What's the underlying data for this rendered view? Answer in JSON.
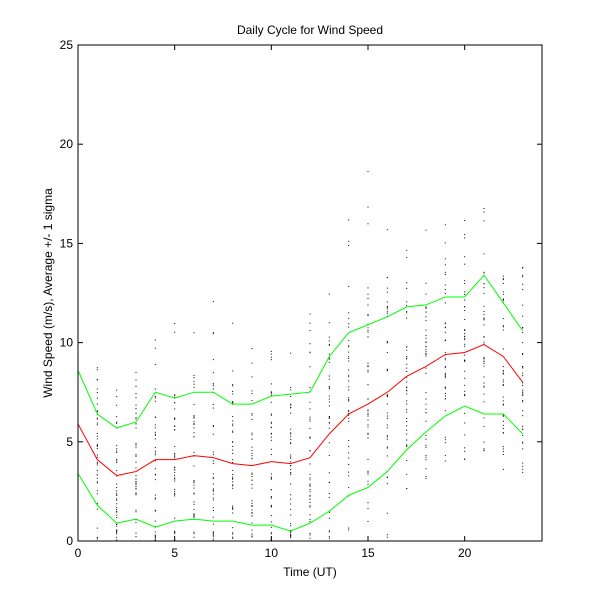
{
  "chart_data": {
    "type": "line",
    "title": "Daily Cycle for Wind Speed",
    "xlabel": "Time (UT)",
    "ylabel": "Wind Speed (m/s), Average +/- 1 sigma",
    "xlim": [
      0,
      24
    ],
    "ylim": [
      0,
      25
    ],
    "xticks": [
      0,
      5,
      10,
      15,
      20
    ],
    "yticks": [
      0,
      5,
      10,
      15,
      20,
      25
    ],
    "grid": false,
    "x": [
      0,
      1,
      2,
      3,
      4,
      5,
      6,
      7,
      8,
      9,
      10,
      11,
      12,
      13,
      14,
      15,
      16,
      17,
      18,
      19,
      20,
      21,
      22,
      23
    ],
    "series": [
      {
        "color": "#00ff00",
        "role": "upper",
        "values": [
          8.6,
          6.4,
          5.7,
          6.0,
          7.5,
          7.2,
          7.5,
          7.5,
          6.9,
          6.9,
          7.3,
          7.4,
          7.5,
          9.3,
          10.5,
          10.9,
          11.3,
          11.8,
          11.9,
          12.3,
          12.3,
          13.4,
          12.0,
          10.6
        ]
      },
      {
        "color": "#ff0000",
        "role": "average",
        "values": [
          5.9,
          4.1,
          3.3,
          3.5,
          4.1,
          4.1,
          4.3,
          4.2,
          3.9,
          3.8,
          4.0,
          3.9,
          4.2,
          5.4,
          6.4,
          6.9,
          7.5,
          8.3,
          8.8,
          9.4,
          9.5,
          9.9,
          9.3,
          8.0
        ]
      },
      {
        "color": "#00ff00",
        "role": "lower",
        "values": [
          3.4,
          1.8,
          0.9,
          1.1,
          0.7,
          1.0,
          1.1,
          1.0,
          1.0,
          0.8,
          0.8,
          0.5,
          0.9,
          1.5,
          2.3,
          2.7,
          3.5,
          4.6,
          5.5,
          6.3,
          6.8,
          6.4,
          6.4,
          5.4
        ]
      }
    ],
    "scatter_color": "#000000"
  }
}
